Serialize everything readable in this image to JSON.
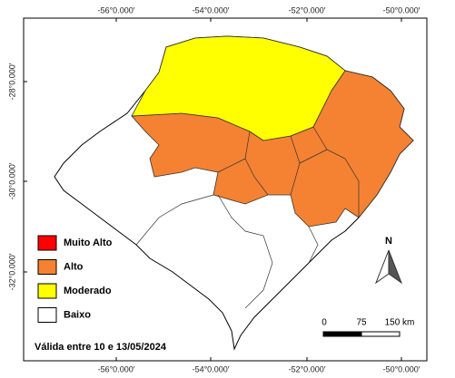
{
  "coordinates": {
    "top": [
      "-56°0.000′",
      "-54°0.000′",
      "-52°0.000′",
      "-50°0.000′"
    ],
    "bottom": [
      "-56°0.000′",
      "-54°0.000′",
      "-52°0.000′",
      "-50°0.000′"
    ],
    "left": [
      "-28°0.000′",
      "-30°0.000′",
      "-32°0.000′"
    ]
  },
  "legend": [
    {
      "label": "Muito Alto",
      "color": "#ff0000"
    },
    {
      "label": "Alto",
      "color": "#f58232"
    },
    {
      "label": "Moderado",
      "color": "#ffff00"
    },
    {
      "label": "Baixo",
      "color": "#ffffff"
    }
  ],
  "north": "N",
  "scale": [
    "0",
    "75",
    "150 km"
  ],
  "validity": "Válida entre 10 e 13/05/2024"
}
